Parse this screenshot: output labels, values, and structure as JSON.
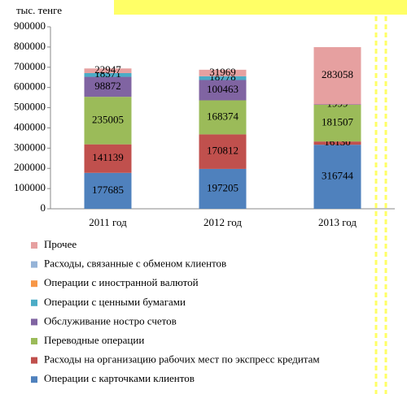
{
  "chart_data": {
    "type": "stacked-bar",
    "y_label": "тыс. тенге",
    "categories": [
      "2011 год",
      "2012 год",
      "2013 год"
    ],
    "ylim": [
      0,
      900000
    ],
    "yticks": [
      0,
      100000,
      200000,
      300000,
      400000,
      500000,
      600000,
      700000,
      800000,
      900000
    ],
    "series": [
      {
        "name": "Операции с карточками клиентов",
        "color": "#4f81bd",
        "values": [
          177685,
          197205,
          316744
        ]
      },
      {
        "name": "Расходы на организацию рабочих мест по экспресс кредитам",
        "color": "#c0504d",
        "values": [
          141139,
          170812,
          16130
        ]
      },
      {
        "name": "Переводные операции",
        "color": "#9bbb59",
        "values": [
          235005,
          168374,
          181507
        ]
      },
      {
        "name": "Обслуживание ностро счетов",
        "color": "#8064a2",
        "values": [
          98872,
          100463,
          1999
        ]
      },
      {
        "name": "Операции с ценными бумагами",
        "color": "#4bacc6",
        "values": [
          18371,
          18778,
          null
        ]
      },
      {
        "name": "Операции с иностранной валютой",
        "color": "#f79646",
        "values": [
          null,
          null,
          null
        ]
      },
      {
        "name": "Расходы, связанные с обменом клиентов",
        "color": "#95b3d7",
        "values": [
          null,
          null,
          null
        ]
      },
      {
        "name": "Прочее",
        "color": "#e6a0a0",
        "values": [
          22947,
          31969,
          283058
        ]
      }
    ]
  }
}
